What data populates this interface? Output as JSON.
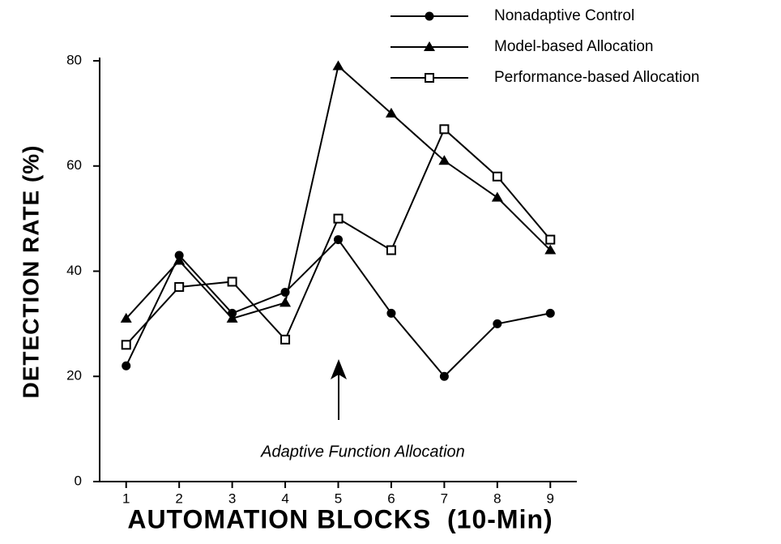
{
  "chart_data": {
    "type": "line",
    "x_label": "AUTOMATION BLOCKS  (10-Min)",
    "y_label": "DETECTION RATE  (%)",
    "annotation": "Adaptive Function Allocation",
    "x": [
      1,
      2,
      3,
      4,
      5,
      6,
      7,
      8,
      9
    ],
    "xlim": [
      0.5,
      9.5
    ],
    "xticks": [
      1,
      2,
      3,
      4,
      5,
      6,
      7,
      8,
      9
    ],
    "ylim": [
      0,
      80
    ],
    "yticks": [
      0,
      20,
      40,
      60,
      80
    ],
    "series": [
      {
        "name": "Nonadaptive Control",
        "color": "#000000",
        "marker": "circle",
        "values": [
          22,
          43,
          32,
          36,
          46,
          32,
          20,
          30,
          32
        ]
      },
      {
        "name": "Model-based Allocation",
        "color": "#000000",
        "marker": "triangle",
        "values": [
          31,
          42,
          31,
          34,
          79,
          70,
          61,
          54,
          44
        ]
      },
      {
        "name": "Performance-based Allocation",
        "color": "#000000",
        "marker": "square",
        "values": [
          26,
          37,
          38,
          27,
          50,
          44,
          67,
          58,
          46
        ]
      }
    ]
  }
}
